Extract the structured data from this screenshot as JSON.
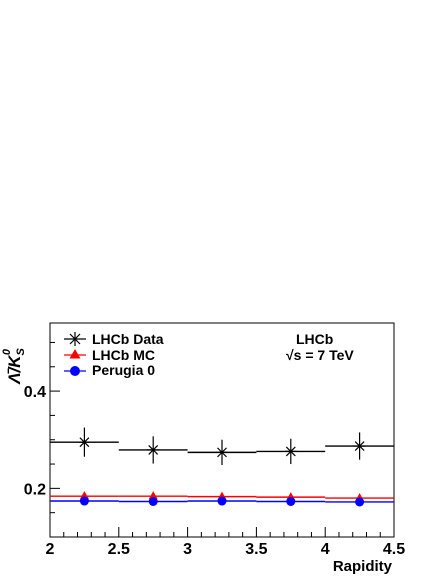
{
  "chart_data": {
    "type": "scatter",
    "xlabel": "Rapidity",
    "ylabel": "Λ̄/K",
    "ylabel_sub": "S",
    "ylabel_sup": "0",
    "xlim": [
      2.0,
      4.5
    ],
    "ylim": [
      0.1,
      0.54
    ],
    "x_ticks": [
      "2",
      "2.5",
      "3",
      "3.5",
      "4",
      "4.5"
    ],
    "y_ticks": [
      "0.2",
      "0.4"
    ],
    "annotations": [
      "LHCb",
      "√s = 7 TeV"
    ],
    "legend_position": "top-left",
    "bins": [
      [
        2.0,
        2.5
      ],
      [
        2.5,
        3.0
      ],
      [
        3.0,
        3.5
      ],
      [
        3.5,
        4.0
      ],
      [
        4.0,
        4.5
      ]
    ],
    "series": [
      {
        "name": "LHCb Data",
        "marker": "star",
        "color": "#000000",
        "x": [
          2.25,
          2.75,
          3.25,
          3.75,
          4.25
        ],
        "y": [
          0.295,
          0.279,
          0.274,
          0.276,
          0.287
        ],
        "yerr": [
          0.03,
          0.028,
          0.026,
          0.026,
          0.028
        ]
      },
      {
        "name": "LHCb MC",
        "marker": "triangle",
        "color": "#ff0000",
        "x": [
          2.25,
          2.75,
          3.25,
          3.75,
          4.25
        ],
        "y": [
          0.184,
          0.184,
          0.183,
          0.182,
          0.18
        ]
      },
      {
        "name": "Perugia 0",
        "marker": "circle",
        "color": "#0000ff",
        "x": [
          2.25,
          2.75,
          3.25,
          3.75,
          4.25
        ],
        "y": [
          0.174,
          0.173,
          0.174,
          0.173,
          0.172
        ]
      }
    ]
  }
}
